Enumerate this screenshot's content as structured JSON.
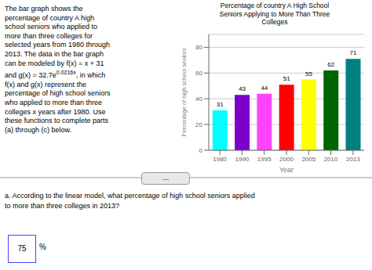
{
  "chart_data": {
    "type": "bar",
    "title": "Percentage of country A High School\nSeniors Applying to More Than Three\nColleges",
    "xlabel": "Year",
    "ylabel": "Percentage of high school seniors",
    "categories": [
      "1980",
      "1990",
      "1995",
      "2000",
      "2005",
      "2010",
      "2013"
    ],
    "values": [
      31,
      43,
      44,
      51,
      55,
      62,
      71
    ],
    "colors": [
      "#00FFFF",
      "#7B00CC",
      "#FF44FF",
      "#FF0000",
      "#FFFF00",
      "#006400",
      "#008080"
    ],
    "ylim": [
      0,
      90
    ],
    "yticks": [
      0,
      20,
      40,
      60,
      80
    ],
    "grid": true,
    "data_labels": true,
    "annotations": [
      "The bar graph shows the\npercentage of country A high\nschool seniors who applied to\nmore than three colleges for\nselected years from 1980 through\n2013. The data in the bar graph\ncan be modeled by f(x) = x + 31\nand g(x) = 32.7e",
      "0.0216x",
      ", in which\nf(x) and g(x) represent the\npercentage of high school seniors\nwho applied to more than three\ncolleges x years after 1980. Use\nthese functions to complete parts\n(a) through (c) below.",
      "...",
      "a. According to the linear model, what percentage of high school seniors applied\nto more than three colleges in 2013?",
      "75",
      "%"
    ]
  }
}
